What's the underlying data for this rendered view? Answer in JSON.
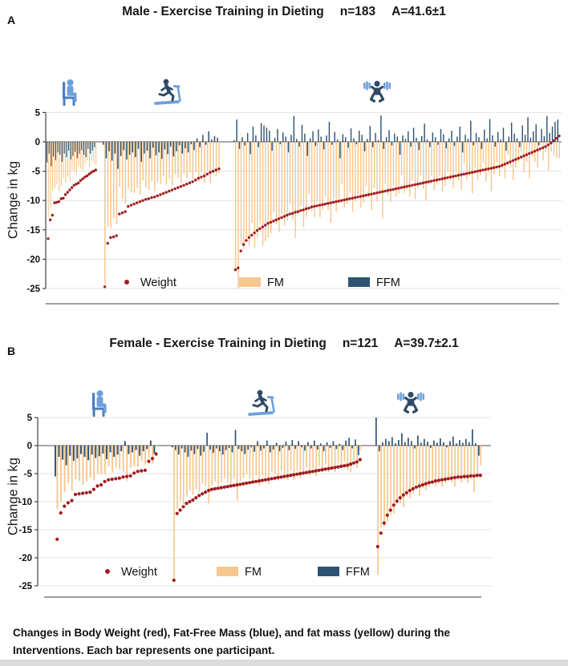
{
  "caption": {
    "text": "Changes in Body Weight (red), Fat-Free Mass (blue), and fat mass (yellow) during the Interventions. Each bar represents one participant."
  },
  "colors": {
    "fm": "#F6C78F",
    "ffm": "#2E5372",
    "weight": "#A01C1C",
    "icon_light": "#6FA0DC",
    "icon_mid": "#4A7EC0",
    "icon_dark": "#2F4A66",
    "grid": "#E3E3E3",
    "zero_line": "#8C8C8C",
    "axis": "#444444",
    "rule": "#666666"
  },
  "chart_data": [
    {
      "type": "bar",
      "panel_label": "A",
      "title": "Male - Exercise Training in Dieting",
      "n_label": "n=183",
      "age_label": "A=41.6±1",
      "ylabel": "Change in kg",
      "ylim": [
        -25,
        5
      ],
      "yticks": [
        5,
        0,
        -5,
        -10,
        -15,
        -20,
        -25
      ],
      "legend": [
        "Weight",
        "FM",
        "FFM"
      ],
      "note": "Each participant: red dot = weight change; tan bar = FM change (weight - FFM); blue bar = FFM change",
      "groups": [
        {
          "icon": "seated-person-icon",
          "weight": [
            -16.5,
            -13.3,
            -12.5,
            -10.4,
            -10.3,
            -10.2,
            -9.7,
            -9.6,
            -9.0,
            -8.6,
            -8.2,
            -7.8,
            -7.4,
            -7.2,
            -7.0,
            -6.6,
            -6.3,
            -6.0,
            -5.8,
            -5.5,
            -5.2,
            -5.0,
            -4.8
          ],
          "ffm": [
            -3.5,
            -2.0,
            -4.2,
            -2.5,
            -3.1,
            -1.8,
            -2.2,
            -3.4,
            -2.0,
            -2.6,
            -1.5,
            -3.0,
            -2.4,
            -1.7,
            -2.8,
            -2.0,
            -1.4,
            -2.2,
            -2.6,
            -1.2,
            -2.0,
            -1.5,
            -0.9
          ]
        },
        {
          "icon": "treadmill-runner-icon",
          "weight": [
            -24.7,
            -17.3,
            -16.3,
            -16.2,
            -16.0,
            -12.3,
            -12.1,
            -11.9,
            -11.0,
            -10.8,
            -10.6,
            -10.4,
            -10.2,
            -10.0,
            -9.8,
            -9.7,
            -9.5,
            -9.4,
            -9.2,
            -9.0,
            -8.8,
            -8.6,
            -8.4,
            -8.2,
            -8.0,
            -7.8,
            -7.6,
            -7.4,
            -7.2,
            -7.0,
            -6.8,
            -6.5,
            -6.2,
            -6.0,
            -5.8,
            -5.5,
            -5.2,
            -5.0,
            -4.8,
            -4.6
          ],
          "ffm": [
            -0.5,
            -2.8,
            -1.6,
            -3.2,
            -2.0,
            -4.6,
            -2.4,
            -1.4,
            -3.0,
            -2.2,
            -1.8,
            -2.6,
            -1.2,
            -3.4,
            -2.0,
            -1.5,
            -2.8,
            -1.0,
            -2.3,
            -1.8,
            -2.9,
            -1.3,
            -2.1,
            -0.8,
            -2.5,
            -1.6,
            -0.6,
            -2.0,
            -1.1,
            -1.8,
            -0.4,
            -1.4,
            0.6,
            -0.9,
            1.2,
            -0.5,
            1.8,
            0.4,
            1.0,
            0.7
          ]
        },
        {
          "icon": "weightlifter-icon",
          "weight": [
            -21.8,
            -21.5,
            -18.6,
            -17.5,
            -16.8,
            -16.3,
            -15.9,
            -15.5,
            -15.1,
            -14.8,
            -14.5,
            -14.2,
            -13.9,
            -13.7,
            -13.5,
            -13.3,
            -13.1,
            -12.9,
            -12.7,
            -12.5,
            -12.3,
            -12.2,
            -12.0,
            -11.9,
            -11.7,
            -11.6,
            -11.4,
            -11.3,
            -11.1,
            -11.0,
            -10.9,
            -10.8,
            -10.7,
            -10.6,
            -10.5,
            -10.4,
            -10.3,
            -10.2,
            -10.1,
            -10.0,
            -9.9,
            -9.8,
            -9.7,
            -9.6,
            -9.5,
            -9.4,
            -9.3,
            -9.2,
            -9.1,
            -9.0,
            -8.9,
            -8.8,
            -8.7,
            -8.6,
            -8.5,
            -8.4,
            -8.3,
            -8.2,
            -8.1,
            -8.0,
            -7.9,
            -7.8,
            -7.7,
            -7.6,
            -7.5,
            -7.4,
            -7.3,
            -7.2,
            -7.1,
            -7.0,
            -6.9,
            -6.8,
            -6.7,
            -6.6,
            -6.5,
            -6.4,
            -6.3,
            -6.2,
            -6.1,
            -6.0,
            -5.9,
            -5.8,
            -5.7,
            -5.6,
            -5.5,
            -5.4,
            -5.3,
            -5.2,
            -5.1,
            -5.0,
            -4.9,
            -4.8,
            -4.7,
            -4.6,
            -4.5,
            -4.4,
            -4.3,
            -4.2,
            -4.0,
            -3.8,
            -3.6,
            -3.4,
            -3.2,
            -3.0,
            -2.8,
            -2.6,
            -2.4,
            -2.2,
            -2.0,
            -1.8,
            -1.6,
            -1.4,
            -1.2,
            -1.0,
            -0.8,
            -0.5,
            -0.2,
            0.2,
            0.6,
            1.0
          ],
          "ffm": [
            0.3,
            3.8,
            -1.2,
            0.8,
            -0.6,
            1.5,
            -2.1,
            2.6,
            1.1,
            -0.9,
            3.2,
            2.8,
            2.4,
            1.9,
            -1.5,
            0.7,
            2.2,
            -0.4,
            1.6,
            0.9,
            -1.8,
            1.2,
            4.4,
            0.5,
            -0.8,
            2.9,
            1.4,
            -2.4,
            0.6,
            1.8,
            -0.7,
            2.1,
            0.9,
            -1.3,
            1.1,
            3.4,
            -0.5,
            1.7,
            0.4,
            -2.8,
            1.3,
            0.8,
            -1.0,
            2.3,
            0.6,
            -0.4,
            1.9,
            1.2,
            -1.6,
            0.5,
            2.7,
            -0.9,
            1.5,
            0.3,
            4.5,
            -1.2,
            0.8,
            2.0,
            -0.6,
            1.4,
            0.9,
            -2.2,
            1.1,
            0.5,
            1.8,
            -0.8,
            2.4,
            0.7,
            -1.4,
            1.0,
            3.1,
            0.4,
            -0.9,
            1.6,
            0.8,
            -0.5,
            2.2,
            1.3,
            -1.1,
            0.6,
            1.9,
            -0.7,
            0.9,
            2.6,
            -1.8,
            1.2,
            0.5,
            3.6,
            -0.6,
            1.5,
            0.8,
            -1.2,
            2.1,
            0.6,
            3.9,
            1.1,
            -0.8,
            1.7,
            0.4,
            2.4,
            -1.5,
            0.9,
            3.3,
            1.4,
            0.6,
            -0.9,
            2.8,
            1.2,
            4.2,
            0.7,
            1.8,
            3.0,
            -0.6,
            2.2,
            1.0,
            4.4,
            1.5,
            2.6,
            3.4,
            3.8
          ]
        }
      ]
    },
    {
      "type": "bar",
      "panel_label": "B",
      "title": "Female - Exercise Training in Dieting",
      "n_label": "n=121",
      "age_label": "A=39.7±2.1",
      "ylabel": "Change in kg",
      "ylim": [
        -25,
        5
      ],
      "yticks": [
        5,
        0,
        -5,
        -10,
        -15,
        -20,
        -25
      ],
      "legend": [
        "Weight",
        "FM",
        "FFM"
      ],
      "note": "Each participant: red dot = weight change; tan bar = FM change (weight - FFM); blue bar = FFM change",
      "groups": [
        {
          "icon": "seated-person-icon",
          "weight": [
            -16.7,
            -12.0,
            -10.8,
            -10.2,
            -9.8,
            -8.7,
            -8.6,
            -8.5,
            -8.4,
            -8.3,
            -7.8,
            -7.2,
            -7.0,
            -6.4,
            -6.1,
            -6.0,
            -5.9,
            -5.8,
            -5.6,
            -5.5,
            -5.4,
            -4.9,
            -4.6,
            -4.5,
            -4.4,
            -2.8,
            -2.3,
            -1.5
          ],
          "ffm": [
            -5.5,
            -2.0,
            -2.5,
            -3.5,
            -1.8,
            -2.7,
            -2.3,
            -1.5,
            -2.0,
            -2.6,
            -1.6,
            -2.2,
            -1.9,
            -1.4,
            -2.4,
            -1.2,
            -2.0,
            -1.6,
            -1.0,
            0.8,
            -1.5,
            -1.2,
            -0.8,
            -1.8,
            -1.0,
            -0.6,
            0.9,
            -1.4
          ]
        },
        {
          "icon": "treadmill-runner-icon",
          "weight": [
            -24.0,
            -12.1,
            -11.5,
            -10.9,
            -10.3,
            -10.0,
            -9.7,
            -9.3,
            -8.9,
            -8.6,
            -8.3,
            -8.0,
            -7.8,
            -7.7,
            -7.6,
            -7.5,
            -7.4,
            -7.3,
            -7.2,
            -7.1,
            -7.0,
            -6.9,
            -6.8,
            -6.7,
            -6.6,
            -6.5,
            -6.4,
            -6.3,
            -6.2,
            -6.1,
            -6.0,
            -5.9,
            -5.8,
            -5.7,
            -5.6,
            -5.5,
            -5.4,
            -5.3,
            -5.2,
            -5.1,
            -5.0,
            -4.9,
            -4.8,
            -4.7,
            -4.6,
            -4.5,
            -4.4,
            -4.3,
            -4.2,
            -4.1,
            -4.0,
            -3.9,
            -3.8,
            -3.7,
            -3.6,
            -3.5,
            -3.3,
            -3.1,
            -2.9,
            -2.5
          ],
          "ffm": [
            -0.3,
            -0.8,
            -1.6,
            -0.5,
            -1.2,
            -2.0,
            -0.9,
            -1.5,
            -0.6,
            -1.8,
            -1.1,
            2.3,
            -0.7,
            -1.3,
            -0.5,
            -1.0,
            -1.6,
            -0.8,
            -0.4,
            -1.2,
            2.8,
            -0.6,
            -1.0,
            -1.5,
            -0.7,
            -0.3,
            -1.1,
            0.8,
            -0.9,
            -0.5,
            0.9,
            -1.2,
            -0.7,
            0.5,
            -1.0,
            -0.4,
            0.7,
            -0.8,
            1.0,
            -0.6,
            0.8,
            -0.3,
            -0.9,
            0.6,
            -0.5,
            0.9,
            -0.7,
            0.4,
            -1.0,
            0.6,
            -0.4,
            0.8,
            -0.6,
            0.3,
            -0.8,
            0.9,
            1.4,
            -0.5,
            1.1,
            -1.7
          ]
        },
        {
          "icon": "weightlifter-icon",
          "weight": [
            -18.0,
            -15.6,
            -13.8,
            -12.4,
            -11.5,
            -10.6,
            -9.9,
            -9.3,
            -8.8,
            -8.4,
            -8.0,
            -7.7,
            -7.4,
            -7.2,
            -7.0,
            -6.8,
            -6.6,
            -6.5,
            -6.3,
            -6.2,
            -6.1,
            -6.0,
            -5.9,
            -5.8,
            -5.7,
            -5.6,
            -5.6,
            -5.5,
            -5.5,
            -5.4,
            -5.4,
            -5.3,
            -5.3
          ],
          "ffm": [
            5.0,
            -1.0,
            0.6,
            1.2,
            0.8,
            1.5,
            0.4,
            1.0,
            2.2,
            0.6,
            1.4,
            0.8,
            -0.5,
            1.8,
            0.5,
            1.2,
            0.7,
            -0.4,
            0.9,
            0.5,
            1.3,
            0.6,
            -0.3,
            0.8,
            1.6,
            0.4,
            1.0,
            0.5,
            1.2,
            0.6,
            2.9,
            0.4,
            -1.8
          ]
        }
      ]
    }
  ]
}
